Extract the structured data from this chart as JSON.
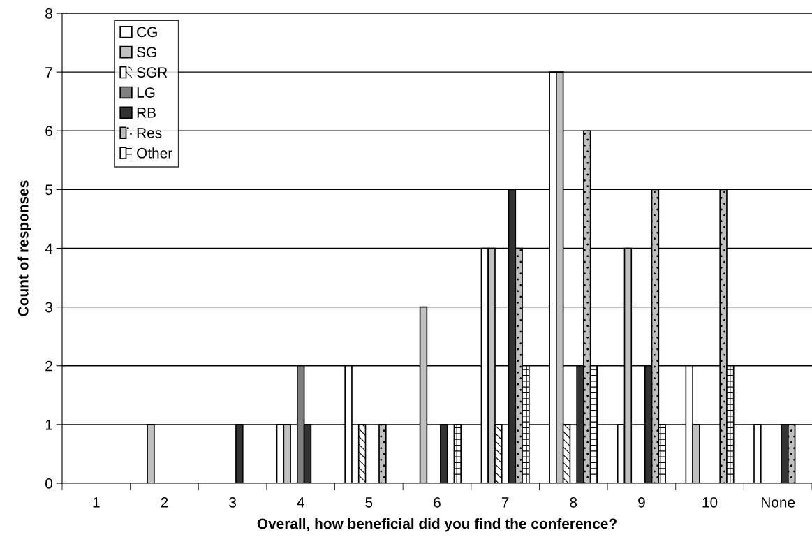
{
  "chart_data": {
    "type": "bar",
    "xlabel": "Overall, how beneficial did you find the conference?",
    "ylabel": "Count of responses",
    "categories": [
      "1",
      "2",
      "3",
      "4",
      "5",
      "6",
      "7",
      "8",
      "9",
      "10",
      "None"
    ],
    "series": [
      {
        "name": "CG",
        "color": "#ffffff",
        "values": [
          0,
          0,
          0,
          1,
          2,
          0,
          4,
          7,
          1,
          2,
          1
        ]
      },
      {
        "name": "SG",
        "color": "#c0c0c0",
        "values": [
          0,
          1,
          0,
          1,
          0,
          3,
          4,
          7,
          4,
          1,
          0
        ]
      },
      {
        "name": "SGR",
        "color": "#ffffff",
        "values": [
          0,
          0,
          0,
          0,
          1,
          0,
          1,
          1,
          0,
          0,
          0
        ]
      },
      {
        "name": "LG",
        "color": "#808080",
        "values": [
          0,
          0,
          0,
          2,
          0,
          0,
          0,
          0,
          0,
          0,
          0
        ]
      },
      {
        "name": "RB",
        "color": "#333333",
        "values": [
          0,
          0,
          1,
          1,
          0,
          1,
          5,
          2,
          2,
          0,
          1
        ]
      },
      {
        "name": "Res",
        "color": "#c0c0c0",
        "values": [
          0,
          0,
          0,
          0,
          1,
          0,
          4,
          6,
          5,
          5,
          1
        ]
      },
      {
        "name": "Other",
        "color": "#ffffff",
        "values": [
          0,
          0,
          0,
          0,
          0,
          1,
          2,
          2,
          1,
          2,
          0
        ]
      }
    ],
    "ylim": [
      0,
      8
    ],
    "yticks": [
      0,
      1,
      2,
      3,
      4,
      5,
      6,
      7,
      8
    ],
    "grid": "y",
    "legend": "top left"
  }
}
